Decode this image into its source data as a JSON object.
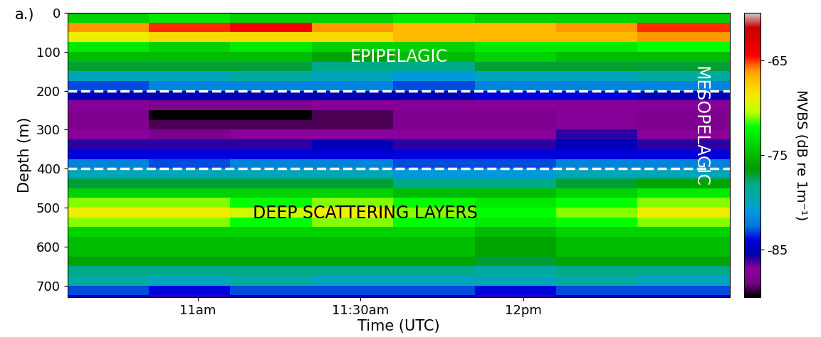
{
  "chart_data": {
    "type": "heatmap",
    "panel_label": "a.)",
    "x_label": "Time (UTC)",
    "y_label": "Depth (m)",
    "xlim": [
      636,
      758
    ],
    "xticks": [
      {
        "value": 660,
        "label": "11am"
      },
      {
        "value": 690,
        "label": "11:30am"
      },
      {
        "value": 720,
        "label": "12pm"
      }
    ],
    "ylim": [
      730,
      0
    ],
    "yticks": [
      0,
      100,
      200,
      300,
      400,
      500,
      600,
      700
    ],
    "time_edges": [
      636,
      651,
      666,
      681,
      696,
      711,
      726,
      741,
      758
    ],
    "depth_edges": [
      0,
      25,
      50,
      75,
      100,
      125,
      150,
      175,
      200,
      225,
      250,
      275,
      300,
      325,
      350,
      375,
      400,
      425,
      450,
      475,
      500,
      525,
      550,
      575,
      600,
      625,
      650,
      675,
      700,
      725,
      750
    ],
    "cells": [
      [
        -74,
        -73,
        -74,
        -74,
        -73,
        -74,
        -74,
        -74
      ],
      [
        -66,
        -65,
        -64,
        -66,
        -67,
        -67,
        -66,
        -65
      ],
      [
        -69,
        -68,
        -68,
        -68,
        -67,
        -67,
        -67,
        -66
      ],
      [
        -73,
        -74,
        -73,
        -74,
        -74,
        -73,
        -73,
        -72
      ],
      [
        -75,
        -75,
        -75,
        -76,
        -75,
        -74,
        -75,
        -75
      ],
      [
        -77,
        -77,
        -77,
        -78,
        -78,
        -77,
        -77,
        -77
      ],
      [
        -80,
        -80,
        -79,
        -80,
        -81,
        -80,
        -80,
        -79
      ],
      [
        -83,
        -82,
        -82,
        -82,
        -83,
        -82,
        -82,
        -82
      ],
      [
        -85,
        -85,
        -85,
        -85,
        -85,
        -84,
        -84,
        -85
      ],
      [
        -87,
        -88,
        -88,
        -87,
        -87,
        -87,
        -87,
        -87
      ],
      [
        -88,
        -90,
        -90,
        -89,
        -88,
        -88,
        -87,
        -88
      ],
      [
        -88,
        -89,
        -89,
        -89,
        -88,
        -88,
        -87,
        -88
      ],
      [
        -87,
        -88,
        -87,
        -87,
        -87,
        -87,
        -86,
        -87
      ],
      [
        -86,
        -86,
        -86,
        -85,
        -86,
        -86,
        -85,
        -86
      ],
      [
        -84,
        -84,
        -84,
        -84,
        -84,
        -84,
        -84,
        -84
      ],
      [
        -82,
        -83,
        -82,
        -82,
        -83,
        -83,
        -82,
        -82
      ],
      [
        -80,
        -80,
        -80,
        -80,
        -81,
        -81,
        -80,
        -80
      ],
      [
        -77,
        -77,
        -77,
        -77,
        -78,
        -78,
        -77,
        -76
      ],
      [
        -74,
        -74,
        -74,
        -74,
        -75,
        -75,
        -74,
        -73
      ],
      [
        -71,
        -71,
        -72,
        -71,
        -72,
        -73,
        -72,
        -71
      ],
      [
        -69,
        -69,
        -70,
        -69,
        -71,
        -72,
        -71,
        -69
      ],
      [
        -71,
        -71,
        -72,
        -71,
        -72,
        -73,
        -72,
        -71
      ],
      [
        -74,
        -74,
        -74,
        -74,
        -74,
        -75,
        -74,
        -74
      ],
      [
        -75,
        -75,
        -75,
        -75,
        -75,
        -76,
        -75,
        -75
      ],
      [
        -75,
        -75,
        -75,
        -75,
        -75,
        -76,
        -75,
        -75
      ],
      [
        -76,
        -76,
        -76,
        -76,
        -76,
        -77,
        -76,
        -76
      ],
      [
        -78,
        -78,
        -78,
        -78,
        -78,
        -79,
        -78,
        -78
      ],
      [
        -79,
        -80,
        -79,
        -80,
        -80,
        -80,
        -79,
        -80
      ],
      [
        -83,
        -84,
        -83,
        -83,
        -83,
        -84,
        -83,
        -83
      ],
      [
        -85,
        -86,
        -85,
        -85,
        -85,
        -86,
        -85,
        -85
      ]
    ],
    "colorbar_label": "MVBS (dB re 1m⁻¹)",
    "colorbar_range": [
      -90,
      -60
    ],
    "colorbar_ticks": [
      -65,
      -75,
      -85
    ],
    "boundaries": [
      200,
      400
    ],
    "annotations": [
      "EPIPELAGIC",
      "MESOPELAGIC",
      "DEEP SCATTERING LAYERS"
    ]
  }
}
